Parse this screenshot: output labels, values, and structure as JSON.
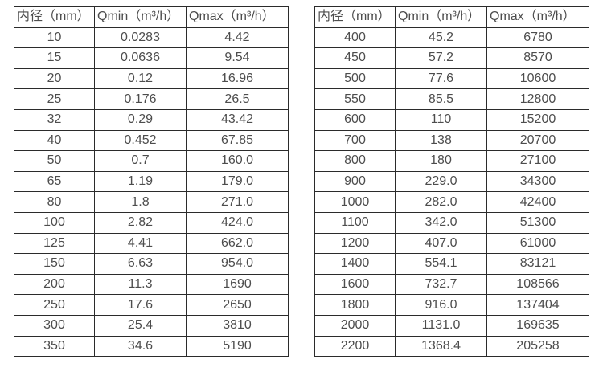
{
  "colors": {
    "background": "#ffffff",
    "table_border": "#2b2b2b",
    "text": "#4d4d4d"
  },
  "chart_data": [
    {
      "type": "table",
      "title": "",
      "columns": [
        "内径（mm）",
        "Qmin（m³/h）",
        "Qmax（m³/h）"
      ],
      "rows": [
        [
          "10",
          "0.0283",
          "4.42"
        ],
        [
          "15",
          "0.0636",
          "9.54"
        ],
        [
          "20",
          "0.12",
          "16.96"
        ],
        [
          "25",
          "0.176",
          "26.5"
        ],
        [
          "32",
          "0.29",
          "43.42"
        ],
        [
          "40",
          "0.452",
          "67.85"
        ],
        [
          "50",
          "0.7",
          "160.0"
        ],
        [
          "65",
          "1.19",
          "179.0"
        ],
        [
          "80",
          "1.8",
          "271.0"
        ],
        [
          "100",
          "2.82",
          "424.0"
        ],
        [
          "125",
          "4.41",
          "662.0"
        ],
        [
          "150",
          "6.63",
          "954.0"
        ],
        [
          "200",
          "11.3",
          "1690"
        ],
        [
          "250",
          "17.6",
          "2650"
        ],
        [
          "300",
          "25.4",
          "3810"
        ],
        [
          "350",
          "34.6",
          "5190"
        ]
      ]
    },
    {
      "type": "table",
      "title": "",
      "columns": [
        "内径（mm）",
        "Qmin（m³/h）",
        "Qmax（m³/h）"
      ],
      "rows": [
        [
          "400",
          "45.2",
          "6780"
        ],
        [
          "450",
          "57.2",
          "8570"
        ],
        [
          "500",
          "77.6",
          "10600"
        ],
        [
          "550",
          "85.5",
          "12800"
        ],
        [
          "600",
          "110",
          "15200"
        ],
        [
          "700",
          "138",
          "20700"
        ],
        [
          "800",
          "180",
          "27100"
        ],
        [
          "900",
          "229.0",
          "34300"
        ],
        [
          "1000",
          "282.0",
          "42400"
        ],
        [
          "1100",
          "342.0",
          "51300"
        ],
        [
          "1200",
          "407.0",
          "61000"
        ],
        [
          "1400",
          "554.1",
          "83121"
        ],
        [
          "1600",
          "732.7",
          "108566"
        ],
        [
          "1800",
          "916.0",
          "137404"
        ],
        [
          "2000",
          "1131.0",
          "169635"
        ],
        [
          "2200",
          "1368.4",
          "205258"
        ]
      ]
    }
  ]
}
